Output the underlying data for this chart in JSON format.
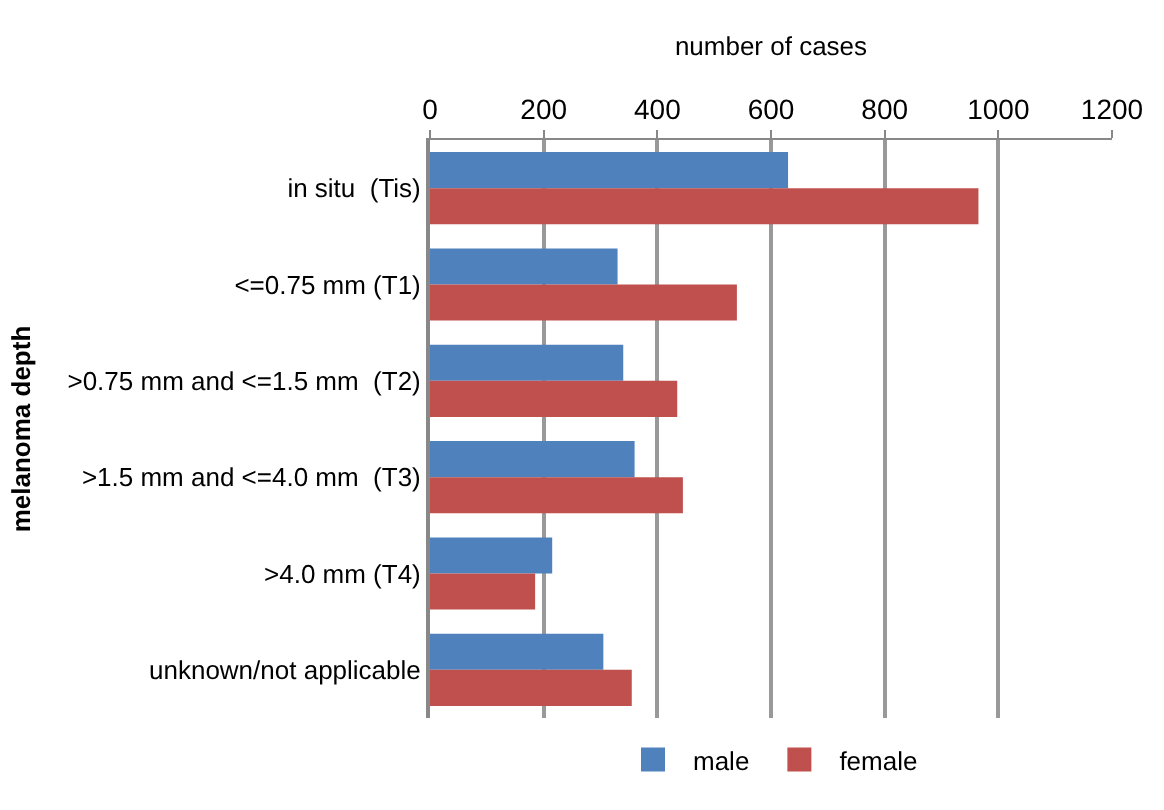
{
  "chart_data": {
    "type": "bar",
    "orientation": "horizontal",
    "xlabel": "number of cases",
    "ylabel": "melanoma depth",
    "categories": [
      "in situ  (Tis)",
      "<=0.75 mm (T1)",
      ">0.75 mm and <=1.5 mm  (T2)",
      ">1.5 mm and <=4.0 mm  (T3)",
      ">4.0 mm (T4)",
      "unknown/not applicable"
    ],
    "series": [
      {
        "name": "male",
        "color": "#4f81bd",
        "values": [
          630,
          330,
          340,
          360,
          215,
          305
        ]
      },
      {
        "name": "female",
        "color": "#c0504d",
        "values": [
          965,
          540,
          435,
          445,
          185,
          355
        ]
      }
    ],
    "xlim": [
      0,
      1200
    ],
    "xticks": [
      0,
      200,
      400,
      600,
      800,
      1000,
      1200
    ],
    "grid": "x",
    "legend": "bottom"
  }
}
